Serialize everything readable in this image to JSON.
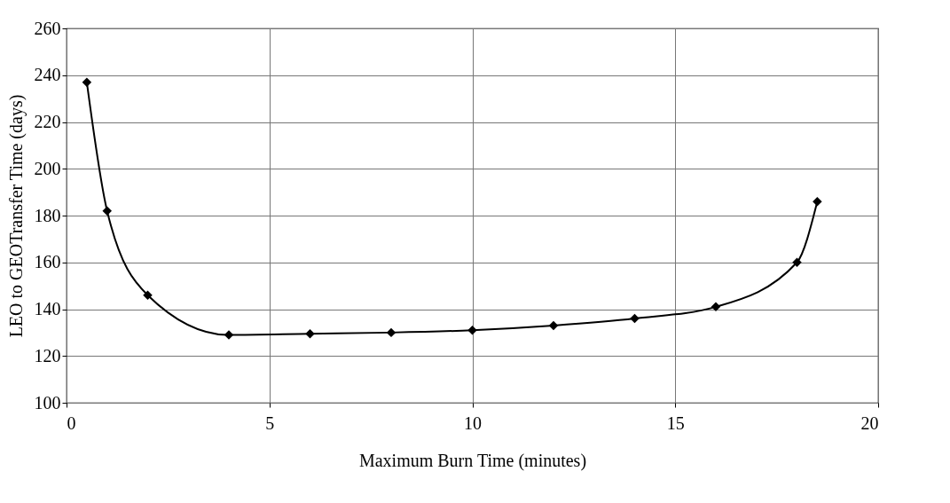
{
  "chart_data": {
    "type": "line",
    "xlabel": "Maximum Burn Time (minutes)",
    "ylabel": "LEO to GEOTransfer Time (days)",
    "x": [
      0.5,
      1,
      2,
      4,
      6,
      8,
      10,
      12,
      14,
      16,
      18,
      18.5
    ],
    "series": [
      {
        "color": "#000000",
        "values": [
          237,
          182,
          146,
          129,
          129.5,
          130,
          131,
          133,
          136,
          141,
          160,
          186
        ]
      }
    ],
    "xlim": [
      0,
      20
    ],
    "ylim": [
      100,
      260
    ],
    "xticks": [
      0,
      5,
      10,
      15,
      20
    ],
    "yticks": [
      100,
      120,
      140,
      160,
      180,
      200,
      220,
      240,
      260
    ],
    "grid": true,
    "marker": "diamond",
    "line_style": "solid"
  }
}
